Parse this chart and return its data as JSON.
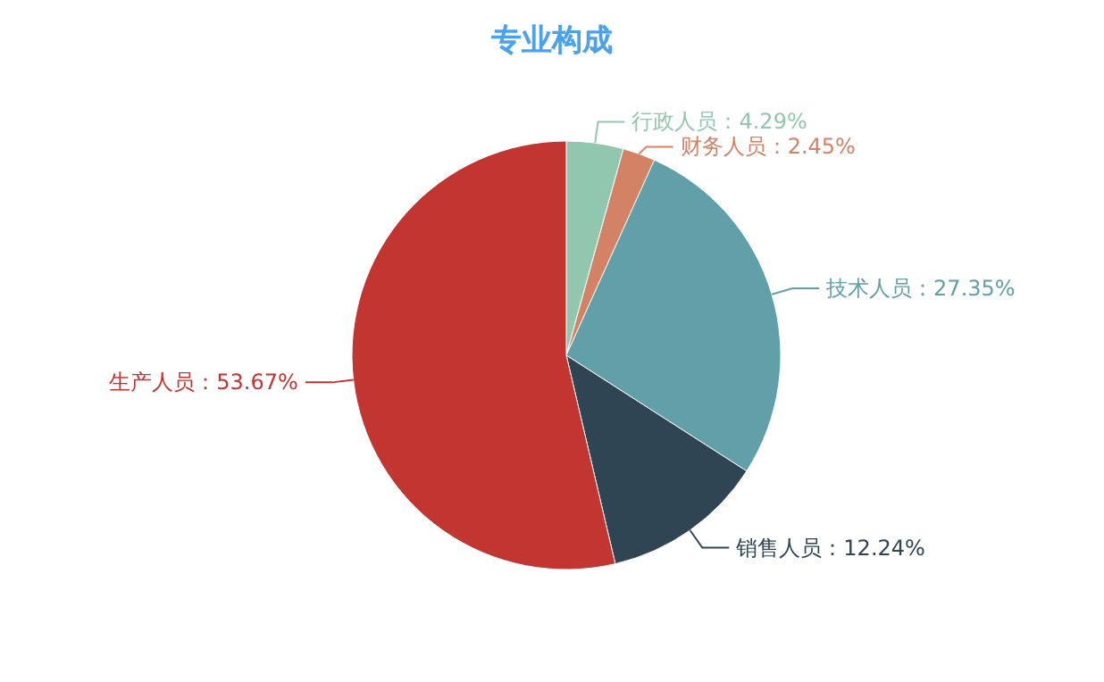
{
  "chart_data": {
    "type": "pie",
    "title": "专业构成",
    "categories": [
      "行政人员",
      "财务人员",
      "技术人员",
      "销售人员",
      "生产人员"
    ],
    "values": [
      4.29,
      2.45,
      27.35,
      12.24,
      53.67
    ],
    "colors": [
      "#91c7ae",
      "#d48265",
      "#61a0a8",
      "#2f4554",
      "#c23531"
    ],
    "value_labels": [
      "：4.29%",
      "：2.45%",
      "：27.35%",
      "：12.24%",
      "：53.67%"
    ],
    "legend": false
  }
}
